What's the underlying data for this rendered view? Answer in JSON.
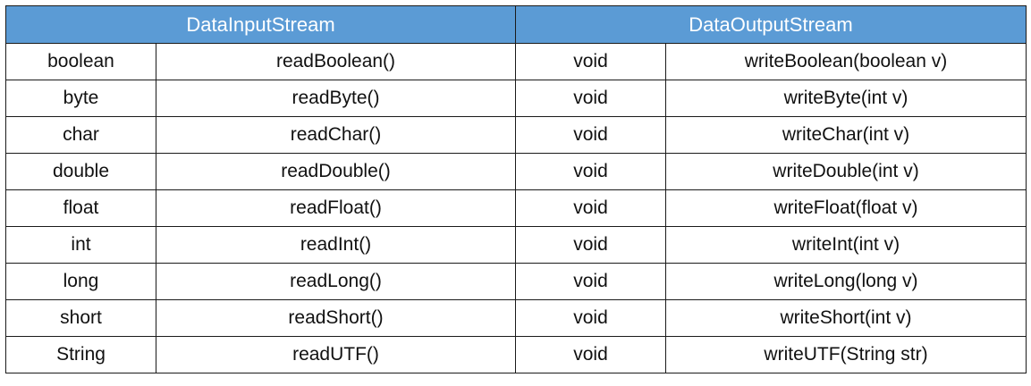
{
  "header": {
    "input_title": "DataInputStream",
    "output_title": "DataOutputStream"
  },
  "colors": {
    "header_bg": "#5b9bd5",
    "header_text": "#ffffff",
    "border": "#1a1a1a"
  },
  "rows": [
    {
      "type": "boolean",
      "read": "readBoolean()",
      "ret": "void",
      "write": "writeBoolean(boolean v)"
    },
    {
      "type": "byte",
      "read": "readByte()",
      "ret": "void",
      "write": "writeByte(int v)"
    },
    {
      "type": "char",
      "read": "readChar()",
      "ret": "void",
      "write": "writeChar(int v)"
    },
    {
      "type": "double",
      "read": "readDouble()",
      "ret": "void",
      "write": "writeDouble(int v)"
    },
    {
      "type": "float",
      "read": "readFloat()",
      "ret": "void",
      "write": "writeFloat(float v)"
    },
    {
      "type": "int",
      "read": "readInt()",
      "ret": "void",
      "write": "writeInt(int v)"
    },
    {
      "type": "long",
      "read": "readLong()",
      "ret": "void",
      "write": "writeLong(long v)"
    },
    {
      "type": "short",
      "read": "readShort()",
      "ret": "void",
      "write": "writeShort(int v)"
    },
    {
      "type": "String",
      "read": "readUTF()",
      "ret": "void",
      "write": "writeUTF(String str)"
    }
  ]
}
